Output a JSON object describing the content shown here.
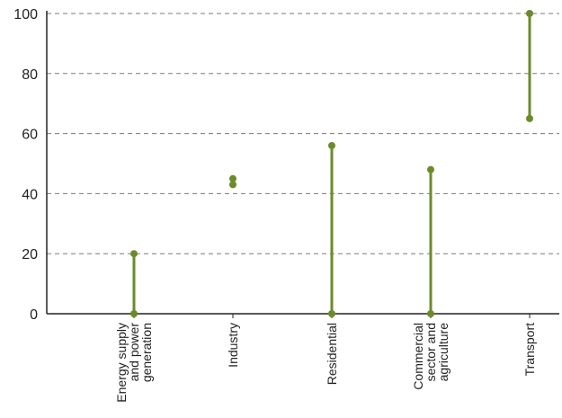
{
  "chart_data": {
    "type": "range",
    "title": "",
    "xlabel": "",
    "ylabel": "",
    "ylim": [
      0,
      100
    ],
    "yticks": [
      0,
      20,
      40,
      60,
      80,
      100
    ],
    "ytick_labels": [
      "0",
      "20",
      "40",
      "60",
      "80",
      "100"
    ],
    "grid": true,
    "color": "#6b8b2a",
    "categories": [
      {
        "label": [
          "Energy supply",
          "and power",
          "generation"
        ],
        "low": 0,
        "high": 20
      },
      {
        "label": [
          "Industry"
        ],
        "low": 43,
        "high": 45
      },
      {
        "label": [
          "Residential"
        ],
        "low": 0,
        "high": 56
      },
      {
        "label": [
          "Commercial",
          "sector and",
          "agriculture"
        ],
        "low": 0,
        "high": 48
      },
      {
        "label": [
          "Transport"
        ],
        "low": 65,
        "high": 100
      }
    ]
  }
}
